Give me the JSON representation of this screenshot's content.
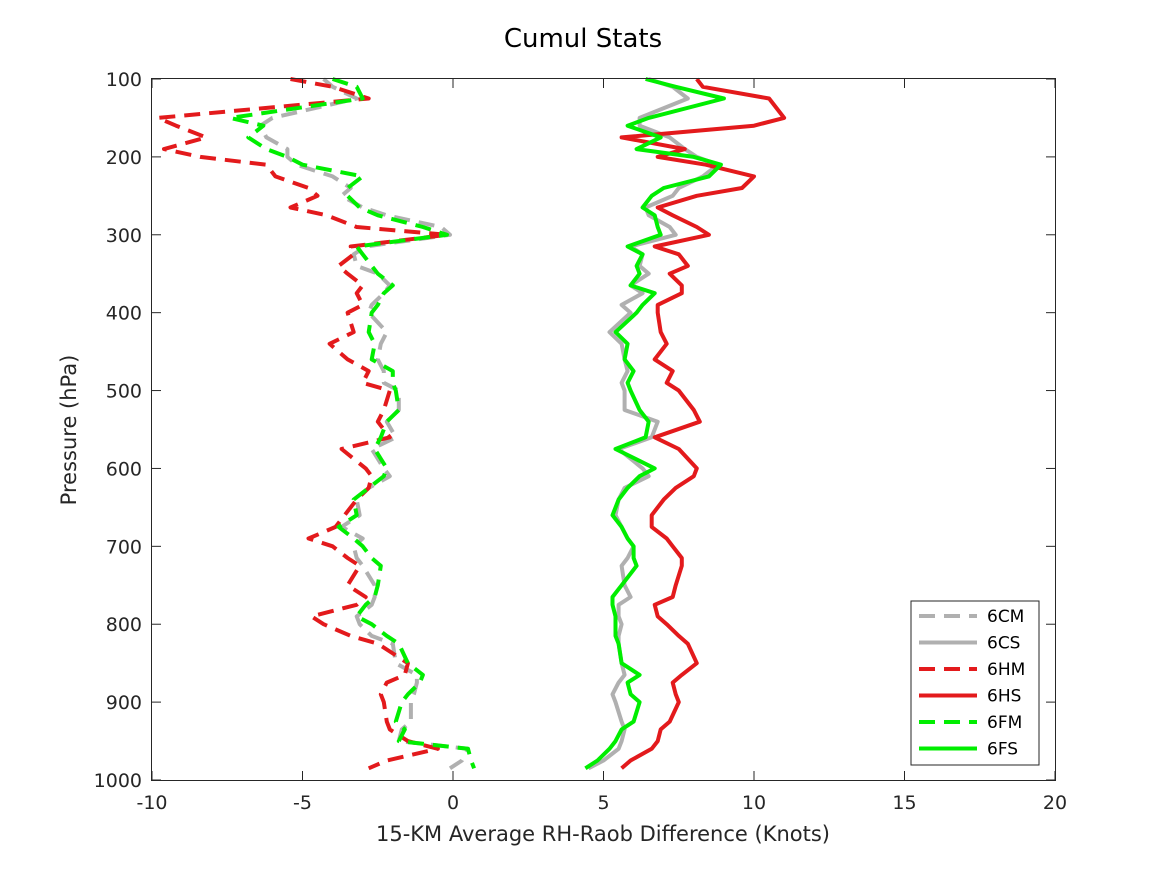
{
  "chart_data": {
    "type": "line",
    "title": "Cumul Stats",
    "xlabel": "15-KM Average RH-Raob Difference (Knots)",
    "ylabel": "Pressure (hPa)",
    "xlim": [
      -10,
      20
    ],
    "ylim": [
      1000,
      100
    ],
    "y_reversed": true,
    "xticks": [
      -10,
      -5,
      0,
      5,
      10,
      15,
      20
    ],
    "yticks": [
      100,
      200,
      300,
      400,
      500,
      600,
      700,
      800,
      900,
      1000
    ],
    "grid": false,
    "legend_position": "bottom-right",
    "pressure": [
      100,
      110,
      125,
      150,
      160,
      175,
      190,
      200,
      210,
      225,
      240,
      250,
      265,
      275,
      290,
      300,
      315,
      325,
      340,
      350,
      365,
      375,
      390,
      400,
      425,
      440,
      460,
      475,
      490,
      500,
      525,
      540,
      560,
      575,
      600,
      610,
      625,
      640,
      660,
      675,
      690,
      700,
      715,
      725,
      750,
      765,
      775,
      790,
      800,
      815,
      825,
      850,
      865,
      875,
      890,
      900,
      925,
      935,
      950,
      960,
      975,
      985
    ],
    "series": [
      {
        "name": "6CM",
        "style": "dashed",
        "color": "#b0b0b0",
        "values": [
          -4.3,
          -4.0,
          -3.2,
          -6.0,
          -6.4,
          -6.2,
          -5.5,
          -5.5,
          -5.2,
          -4.0,
          -3.4,
          -3.7,
          -3.0,
          -2.2,
          -0.4,
          -0.1,
          -2.9,
          -3.3,
          -3.2,
          -2.5,
          -2.1,
          -2.3,
          -2.7,
          -2.8,
          -2.2,
          -2.4,
          -2.5,
          -2.3,
          -2.3,
          -1.8,
          -1.8,
          -2.2,
          -1.9,
          -2.7,
          -2.3,
          -2.1,
          -2.8,
          -3.2,
          -3.1,
          -3.7,
          -3.0,
          -3.3,
          -3.2,
          -3.0,
          -2.6,
          -2.6,
          -2.7,
          -3.2,
          -3.1,
          -2.7,
          -2.0,
          -1.9,
          -1.2,
          -1.2,
          -1.3,
          -1.4,
          -1.4,
          -1.7,
          -1.8,
          0.5,
          0.3,
          -0.1
        ]
      },
      {
        "name": "6CS",
        "style": "solid",
        "color": "#b0b0b0",
        "values": [
          6.5,
          7.3,
          7.8,
          6.2,
          6.2,
          7.2,
          7.7,
          8.1,
          8.8,
          8.3,
          7.5,
          7.3,
          6.4,
          6.5,
          7.2,
          7.4,
          5.9,
          6.3,
          6.2,
          6.5,
          5.9,
          6.3,
          5.6,
          5.9,
          5.2,
          5.6,
          5.7,
          5.8,
          5.6,
          5.7,
          5.7,
          6.8,
          6.6,
          5.5,
          6.3,
          6.5,
          5.7,
          5.5,
          5.4,
          5.6,
          5.8,
          6.0,
          5.8,
          5.6,
          5.7,
          5.9,
          5.5,
          5.5,
          5.6,
          5.5,
          5.5,
          5.6,
          5.7,
          5.5,
          5.3,
          5.4,
          5.6,
          5.7,
          5.6,
          5.5,
          5.0,
          4.5
        ]
      },
      {
        "name": "6HM",
        "style": "dashed",
        "color": "#e31a1c",
        "values": [
          -5.4,
          -4.0,
          -2.8,
          -9.8,
          -9.2,
          -8.2,
          -9.6,
          -8.4,
          -6.2,
          -5.9,
          -4.8,
          -4.5,
          -5.4,
          -4.2,
          -3.2,
          -0.2,
          -3.4,
          -3.3,
          -3.8,
          -3.5,
          -3.0,
          -3.2,
          -3.0,
          -3.5,
          -3.3,
          -4.1,
          -3.5,
          -2.8,
          -3.0,
          -2.1,
          -2.3,
          -2.5,
          -2.1,
          -3.7,
          -2.9,
          -2.7,
          -2.8,
          -3.2,
          -3.6,
          -3.9,
          -4.8,
          -4.0,
          -3.5,
          -3.1,
          -3.5,
          -2.9,
          -3.2,
          -4.7,
          -4.3,
          -3.4,
          -2.5,
          -1.5,
          -1.6,
          -2.2,
          -2.4,
          -2.3,
          -2.2,
          -2.1,
          -1.5,
          -0.5,
          -2.2,
          -2.8
        ]
      },
      {
        "name": "6HS",
        "style": "solid",
        "color": "#e31a1c",
        "values": [
          8.1,
          8.3,
          10.5,
          11.0,
          10.0,
          5.6,
          7.7,
          6.8,
          8.4,
          10.0,
          9.6,
          8.1,
          6.8,
          7.3,
          8.1,
          8.5,
          6.7,
          7.5,
          7.8,
          7.2,
          7.6,
          7.6,
          6.8,
          6.8,
          6.9,
          7.1,
          6.7,
          7.3,
          7.1,
          7.5,
          8.0,
          8.2,
          6.7,
          7.5,
          8.1,
          8.0,
          7.4,
          7.0,
          6.6,
          6.6,
          7.1,
          7.3,
          7.6,
          7.6,
          7.4,
          7.3,
          6.7,
          6.8,
          7.1,
          7.5,
          7.8,
          8.1,
          7.6,
          7.3,
          7.4,
          7.5,
          7.2,
          6.9,
          6.8,
          6.6,
          5.9,
          5.6
        ]
      },
      {
        "name": "6FM",
        "style": "dashed",
        "color": "#00ee00",
        "values": [
          -4.0,
          -3.2,
          -3.0,
          -7.4,
          -6.3,
          -6.8,
          -6.2,
          -5.5,
          -5.0,
          -3.0,
          -3.5,
          -3.5,
          -3.1,
          -2.5,
          -1.0,
          -0.2,
          -3.2,
          -3.0,
          -2.7,
          -2.5,
          -2.0,
          -2.3,
          -2.5,
          -2.7,
          -2.8,
          -2.6,
          -2.7,
          -2.0,
          -2.0,
          -1.9,
          -1.8,
          -2.2,
          -2.4,
          -2.6,
          -2.2,
          -2.3,
          -2.8,
          -3.3,
          -3.2,
          -3.8,
          -3.3,
          -3.0,
          -2.7,
          -2.4,
          -2.5,
          -2.6,
          -2.9,
          -3.2,
          -2.7,
          -2.2,
          -1.8,
          -1.5,
          -1.0,
          -1.1,
          -1.5,
          -1.7,
          -1.9,
          -1.6,
          -1.8,
          0.5,
          0.6,
          0.7
        ]
      },
      {
        "name": "6FS",
        "style": "solid",
        "color": "#00ee00",
        "values": [
          6.4,
          7.4,
          9.0,
          6.5,
          5.8,
          6.9,
          6.1,
          8.0,
          8.9,
          8.5,
          7.0,
          6.6,
          6.3,
          6.7,
          6.8,
          6.9,
          5.8,
          6.3,
          6.1,
          6.2,
          5.9,
          6.7,
          6.3,
          6.1,
          5.4,
          5.8,
          5.7,
          6.0,
          5.8,
          5.9,
          6.2,
          6.5,
          6.4,
          5.4,
          6.7,
          6.2,
          5.8,
          5.5,
          5.3,
          5.6,
          5.8,
          6.0,
          6.0,
          6.1,
          5.6,
          5.3,
          5.3,
          5.4,
          5.4,
          5.4,
          5.5,
          5.6,
          6.2,
          5.8,
          5.9,
          6.2,
          6.0,
          5.6,
          5.4,
          5.2,
          4.8,
          4.4
        ]
      }
    ]
  }
}
